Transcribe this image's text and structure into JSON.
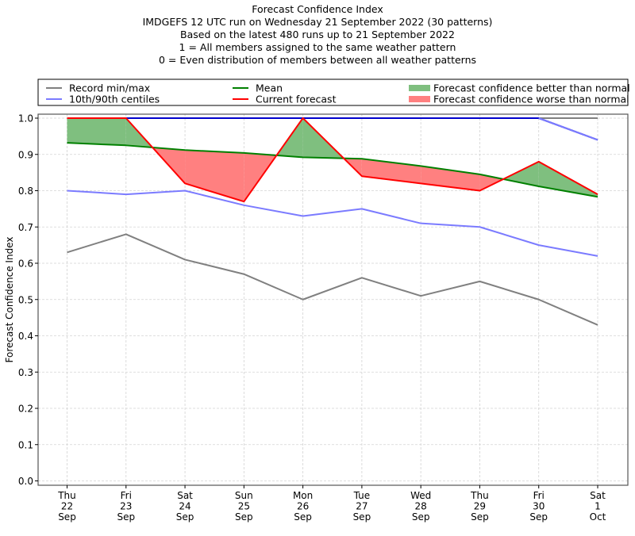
{
  "chart_data": {
    "type": "line",
    "title": "Forecast Confidence Index",
    "subtitle_lines": [
      "IMDGEFS 12 UTC run on Wednesday 21 September 2022 (30 patterns)",
      "Based on the latest 480 runs up to 21 September 2022",
      "1 = All members assigned to the same weather pattern",
      "0 = Even distribution of members between all weather patterns"
    ],
    "xlabel": "",
    "ylabel": "Forecast Confidence Index",
    "ylim": [
      0.0,
      1.0
    ],
    "yticks": [
      "0.0",
      "0.1",
      "0.2",
      "0.3",
      "0.4",
      "0.5",
      "0.6",
      "0.7",
      "0.8",
      "0.9",
      "1.0"
    ],
    "grid": true,
    "legend_position": "top",
    "categories": [
      [
        "Thu",
        "22",
        "Sep"
      ],
      [
        "Fri",
        "23",
        "Sep"
      ],
      [
        "Sat",
        "24",
        "Sep"
      ],
      [
        "Sun",
        "25",
        "Sep"
      ],
      [
        "Mon",
        "26",
        "Sep"
      ],
      [
        "Tue",
        "27",
        "Sep"
      ],
      [
        "Wed",
        "28",
        "Sep"
      ],
      [
        "Thu",
        "29",
        "Sep"
      ],
      [
        "Fri",
        "30",
        "Sep"
      ],
      [
        "Sat",
        "1",
        "Oct"
      ]
    ],
    "series": [
      {
        "name": "Record min/max",
        "role": "record_max",
        "color": "#808080",
        "values": [
          1.0,
          1.0,
          1.0,
          1.0,
          1.0,
          1.0,
          1.0,
          1.0,
          1.0,
          1.0
        ]
      },
      {
        "name": "Record min/max",
        "role": "record_min",
        "color": "#808080",
        "values": [
          0.63,
          0.68,
          0.61,
          0.57,
          0.5,
          0.56,
          0.51,
          0.55,
          0.5,
          0.43
        ]
      },
      {
        "name": "10th/90th centiles",
        "role": "p90",
        "color": "#7b7bff",
        "values": [
          1.0,
          1.0,
          1.0,
          1.0,
          1.0,
          1.0,
          1.0,
          1.0,
          1.0,
          0.94
        ]
      },
      {
        "name": "10th/90th centiles",
        "role": "p10",
        "color": "#7b7bff",
        "values": [
          0.8,
          0.79,
          0.8,
          0.76,
          0.73,
          0.75,
          0.71,
          0.7,
          0.65,
          0.62
        ]
      },
      {
        "name": "Mean",
        "role": "mean",
        "color": "#008000",
        "values": [
          0.932,
          0.925,
          0.912,
          0.904,
          0.892,
          0.888,
          0.868,
          0.845,
          0.812,
          0.783
        ]
      },
      {
        "name": "Current forecast",
        "role": "current",
        "color": "#ff0000",
        "values": [
          1.0,
          1.0,
          0.82,
          0.77,
          1.0,
          0.84,
          0.82,
          0.8,
          0.88,
          0.79
        ]
      }
    ],
    "legend": [
      {
        "label": "Record min/max",
        "kind": "line",
        "color": "#808080"
      },
      {
        "label": "10th/90th centiles",
        "kind": "line",
        "color": "#7b7bff"
      },
      {
        "label": "Mean",
        "kind": "line",
        "color": "#008000"
      },
      {
        "label": "Current forecast",
        "kind": "line",
        "color": "#ff0000"
      },
      {
        "label": "Forecast confidence better than normal",
        "kind": "patch",
        "color": "#7fbf7f"
      },
      {
        "label": "Forecast confidence worse than normal",
        "kind": "patch",
        "color": "#ff8080"
      }
    ],
    "fill_colors": {
      "better": "#7fbf7f",
      "worse": "#ff8080"
    }
  }
}
